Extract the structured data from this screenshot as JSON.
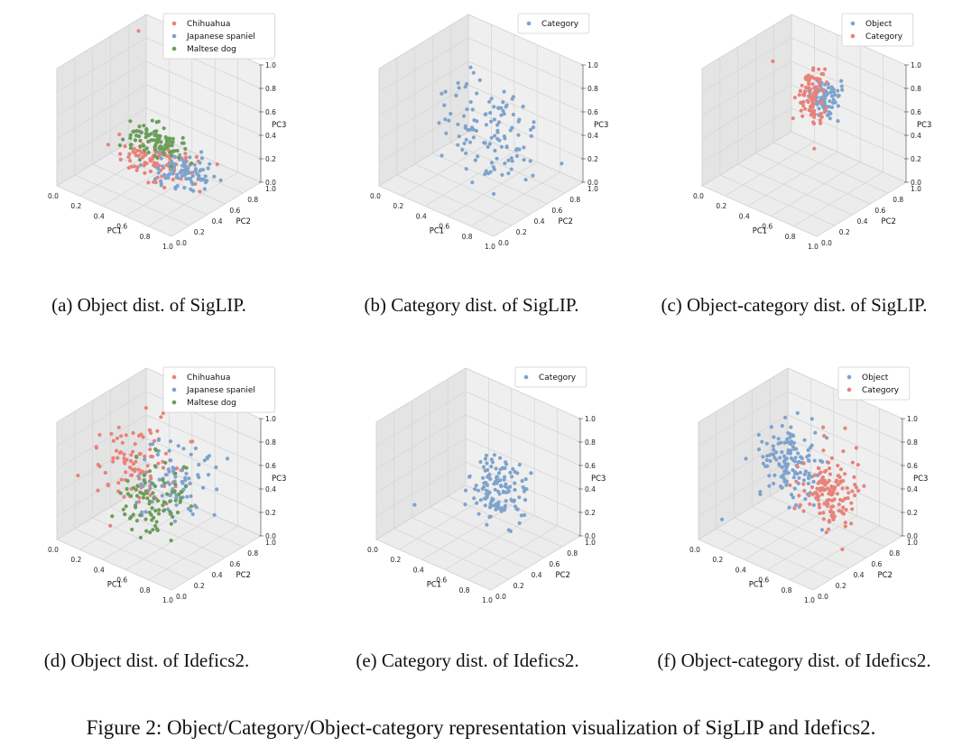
{
  "figure_caption": "Figure 2: Object/Category/Object-category representation visualization of SigLIP and Idefics2.",
  "colors": {
    "red": "#e8827a",
    "blue": "#7ea3cc",
    "green": "#6a9e5a",
    "pane": "#ececec",
    "grid": "#d4d4d4"
  },
  "chart_data": [
    {
      "type": "scatter",
      "panel": "a",
      "caption": "(a) Object dist. of SigLIP.",
      "xlabel": "PC1",
      "ylabel": "PC2",
      "zlabel": "PC3",
      "xlim": [
        0,
        1
      ],
      "ylim": [
        0,
        1
      ],
      "zlim": [
        0,
        1
      ],
      "ticks": [
        "0.0",
        "0.2",
        "0.4",
        "0.6",
        "0.8",
        "1.0"
      ],
      "legend": "top-right",
      "series": [
        {
          "name": "Chihuahua",
          "color": "#e8827a",
          "cloud": {
            "n": 95,
            "cx": 0.5,
            "cy": 0.48,
            "cz": 0.2,
            "sx": 0.16,
            "sy": 0.1,
            "sz": 0.05,
            "seed": 11
          },
          "extra": [
            [
              0.05,
              0.85,
              0.95
            ]
          ]
        },
        {
          "name": "Japanese spaniel",
          "color": "#7ea3cc",
          "cloud": {
            "n": 95,
            "cx": 0.7,
            "cy": 0.48,
            "cz": 0.2,
            "sx": 0.12,
            "sy": 0.08,
            "sz": 0.05,
            "seed": 23
          }
        },
        {
          "name": "Maltese dog",
          "color": "#6a9e5a",
          "cloud": {
            "n": 95,
            "cx": 0.4,
            "cy": 0.62,
            "cz": 0.25,
            "sx": 0.12,
            "sy": 0.08,
            "sz": 0.04,
            "seed": 37
          }
        }
      ]
    },
    {
      "type": "scatter",
      "panel": "b",
      "caption": "(b) Category dist. of SigLIP.",
      "xlabel": "PC1",
      "ylabel": "PC2",
      "zlabel": "PC3",
      "xlim": [
        0,
        1
      ],
      "ylim": [
        0,
        1
      ],
      "zlim": [
        0,
        1
      ],
      "ticks": [
        "0.0",
        "0.2",
        "0.4",
        "0.6",
        "0.8",
        "1.0"
      ],
      "legend": "top-right",
      "series": [
        {
          "name": "Category",
          "color": "#7ea3cc",
          "cloud": {
            "n": 120,
            "cx": 0.5,
            "cy": 0.55,
            "cz": 0.45,
            "sx": 0.2,
            "sy": 0.15,
            "sz": 0.2,
            "seed": 51
          }
        }
      ]
    },
    {
      "type": "scatter",
      "panel": "c",
      "caption": "(c) Object-category dist. of SigLIP.",
      "xlabel": "PC1",
      "ylabel": "PC2",
      "zlabel": "PC3",
      "xlim": [
        0,
        1
      ],
      "ylim": [
        0,
        1
      ],
      "zlim": [
        0,
        1
      ],
      "ticks": [
        "0.0",
        "0.2",
        "0.4",
        "0.6",
        "0.8",
        "1.0"
      ],
      "legend": "top-right",
      "series": [
        {
          "name": "Object",
          "color": "#7ea3cc",
          "cloud": {
            "n": 75,
            "cx": 0.6,
            "cy": 0.6,
            "cz": 0.72,
            "sx": 0.05,
            "sy": 0.05,
            "sz": 0.08,
            "seed": 67
          }
        },
        {
          "name": "Category",
          "color": "#e8827a",
          "cloud": {
            "n": 95,
            "cx": 0.5,
            "cy": 0.6,
            "cz": 0.72,
            "sx": 0.05,
            "sy": 0.05,
            "sz": 0.1,
            "seed": 79
          },
          "extra": [
            [
              0.15,
              0.6,
              0.85
            ],
            [
              0.55,
              0.55,
              0.3
            ]
          ]
        }
      ]
    },
    {
      "type": "scatter",
      "panel": "d",
      "caption": "(d) Object dist. of Idefics2.",
      "xlabel": "PC1",
      "ylabel": "PC2",
      "zlabel": "PC3",
      "xlim": [
        0,
        1
      ],
      "ylim": [
        0,
        1
      ],
      "zlim": [
        0,
        1
      ],
      "ticks": [
        "0.0",
        "0.2",
        "0.4",
        "0.6",
        "0.8",
        "1.0"
      ],
      "legend": "top-right",
      "series": [
        {
          "name": "Chihuahua",
          "color": "#e8827a",
          "cloud": {
            "n": 100,
            "cx": 0.3,
            "cy": 0.5,
            "cz": 0.5,
            "sx": 0.15,
            "sy": 0.15,
            "sz": 0.18,
            "seed": 91
          }
        },
        {
          "name": "Japanese spaniel",
          "color": "#7ea3cc",
          "cloud": {
            "n": 90,
            "cx": 0.65,
            "cy": 0.5,
            "cz": 0.55,
            "sx": 0.12,
            "sy": 0.14,
            "sz": 0.15,
            "seed": 103
          }
        },
        {
          "name": "Maltese dog",
          "color": "#6a9e5a",
          "cloud": {
            "n": 90,
            "cx": 0.5,
            "cy": 0.45,
            "cz": 0.35,
            "sx": 0.12,
            "sy": 0.12,
            "sz": 0.15,
            "seed": 117
          }
        }
      ]
    },
    {
      "type": "scatter",
      "panel": "e",
      "caption": "(e) Category dist. of Idefics2.",
      "xlabel": "PC1",
      "ylabel": "PC2",
      "zlabel": "PC3",
      "xlim": [
        0,
        1
      ],
      "ylim": [
        0,
        1
      ],
      "zlim": [
        0,
        1
      ],
      "ticks": [
        "0.0",
        "0.2",
        "0.4",
        "0.6",
        "0.8",
        "1.0"
      ],
      "legend": "top-right",
      "series": [
        {
          "name": "Category",
          "color": "#7ea3cc",
          "cloud": {
            "n": 130,
            "cx": 0.62,
            "cy": 0.55,
            "cz": 0.45,
            "sx": 0.1,
            "sy": 0.1,
            "sz": 0.12,
            "seed": 131
          },
          "extra": [
            [
              0.1,
              0.3,
              0.2
            ]
          ]
        }
      ]
    },
    {
      "type": "scatter",
      "panel": "f",
      "caption": "(f) Object-category dist. of Idefics2.",
      "xlabel": "PC1",
      "ylabel": "PC2",
      "zlabel": "PC3",
      "xlim": [
        0,
        1
      ],
      "ylim": [
        0,
        1
      ],
      "zlim": [
        0,
        1
      ],
      "ticks": [
        "0.0",
        "0.2",
        "0.4",
        "0.6",
        "0.8",
        "1.0"
      ],
      "legend": "top-right",
      "series": [
        {
          "name": "Object",
          "color": "#7ea3cc",
          "cloud": {
            "n": 140,
            "cx": 0.35,
            "cy": 0.55,
            "cz": 0.55,
            "sx": 0.12,
            "sy": 0.12,
            "sz": 0.15,
            "seed": 149
          },
          "extra": [
            [
              0.05,
              0.2,
              0.1
            ]
          ]
        },
        {
          "name": "Category",
          "color": "#e8827a",
          "cloud": {
            "n": 140,
            "cx": 0.72,
            "cy": 0.55,
            "cz": 0.48,
            "sx": 0.1,
            "sy": 0.12,
            "sz": 0.15,
            "seed": 163
          }
        }
      ]
    }
  ]
}
